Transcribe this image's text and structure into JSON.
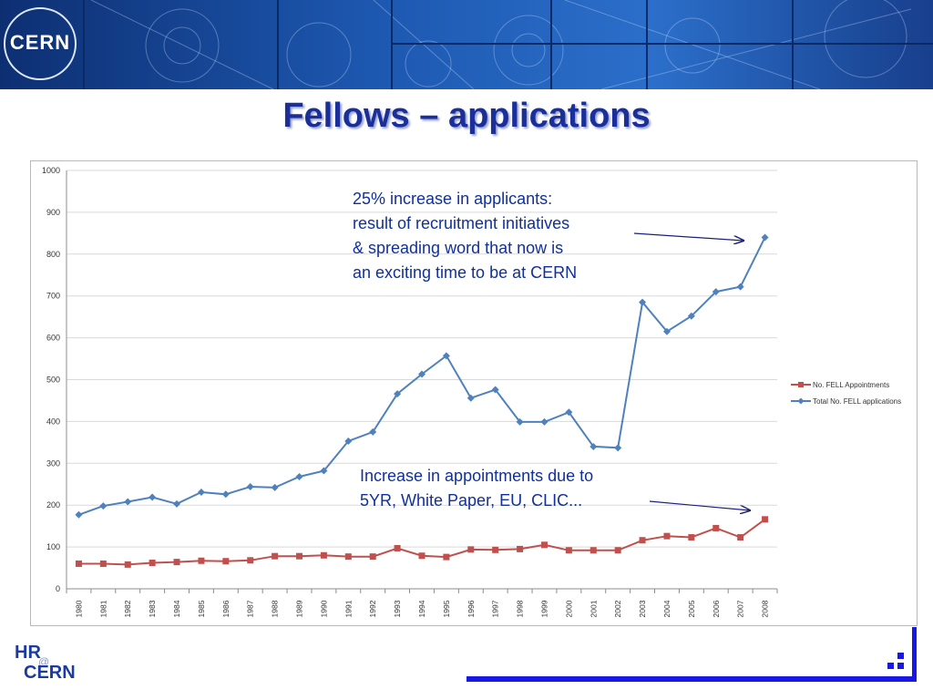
{
  "header": {
    "logo_text": "CERN",
    "title": "Fellows – applications"
  },
  "annotations": {
    "applicants_note": [
      "25% increase in applicants:",
      "result of recruitment initiatives",
      "& spreading word that now is",
      "an exciting time to be at CERN"
    ],
    "appointments_note": [
      "Increase in appointments due to",
      "5YR, White Paper, EU, CLIC..."
    ]
  },
  "footer": {
    "hr_line1": "HR",
    "hr_at": "@",
    "hr_line2": "CERN"
  },
  "colors": {
    "title": "#1a2f9a",
    "appointments": "#c0504d",
    "applications": "#4f81bd",
    "annotation": "#10309a",
    "accent_bar": "#1717e6"
  },
  "chart_data": {
    "type": "line",
    "x": [
      "1980",
      "1981",
      "1982",
      "1983",
      "1984",
      "1985",
      "1986",
      "1987",
      "1988",
      "1989",
      "1990",
      "1991",
      "1992",
      "1993",
      "1994",
      "1995",
      "1996",
      "1997",
      "1998",
      "1999",
      "2000",
      "2001",
      "2002",
      "2003",
      "2004",
      "2005",
      "2006",
      "2007",
      "2008"
    ],
    "ylim": [
      0,
      1000
    ],
    "yticks": [
      0,
      100,
      200,
      300,
      400,
      500,
      600,
      700,
      800,
      900,
      1000
    ],
    "grid": true,
    "legend_position": "right",
    "series": [
      {
        "name": "No. FELL Appointments",
        "marker": "square",
        "values": [
          60,
          60,
          58,
          62,
          64,
          67,
          66,
          68,
          78,
          78,
          80,
          77,
          77,
          97,
          79,
          76,
          94,
          93,
          95,
          105,
          92,
          92,
          92,
          116,
          126,
          123,
          145,
          123,
          166
        ]
      },
      {
        "name": "Total No. FELL applications",
        "marker": "diamond",
        "values": [
          177,
          198,
          208,
          219,
          203,
          231,
          226,
          244,
          242,
          268,
          282,
          353,
          375,
          466,
          513,
          557,
          456,
          476,
          399,
          399,
          422,
          340,
          337,
          685,
          615,
          652,
          710,
          722,
          840
        ]
      }
    ]
  }
}
